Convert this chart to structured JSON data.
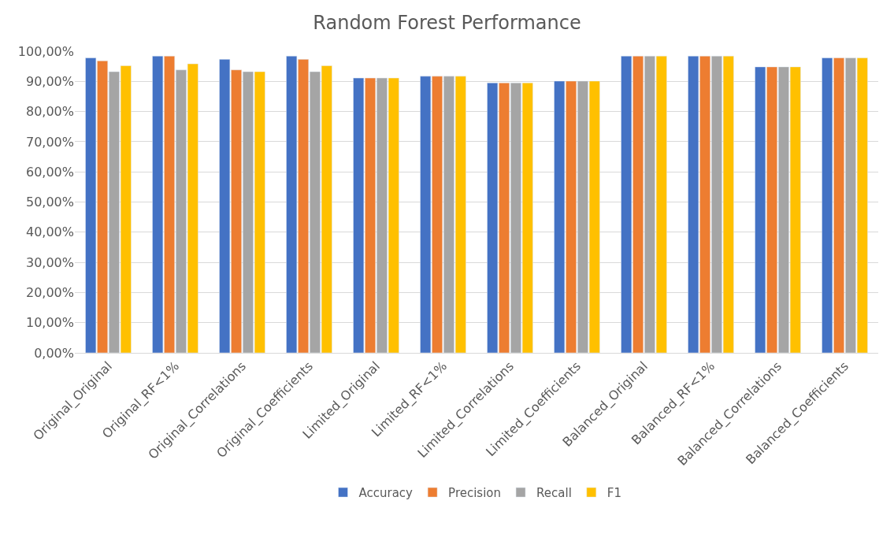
{
  "chart_data": {
    "type": "bar",
    "title": "Random Forest Performance",
    "categories": [
      "Original_Original",
      "Original_RF<1%",
      "Original_Correlations",
      "Original_Coefficients",
      "Limited_Original",
      "Limited_RF<1%",
      "Limited_Correlations",
      "Limited_Coefficients",
      "Balanced_Original",
      "Balanced_RF<1%",
      "Balanced_Correlations",
      "Balanced_Coefficients"
    ],
    "series": [
      {
        "name": "Accuracy",
        "color": "#4472c4",
        "values": [
          97.8,
          98.4,
          97.3,
          98.4,
          91.1,
          91.7,
          89.5,
          90.1,
          98.4,
          98.4,
          94.8,
          97.8
        ]
      },
      {
        "name": "Precision",
        "color": "#ed7d31",
        "values": [
          96.8,
          98.4,
          93.8,
          97.3,
          91.1,
          91.7,
          89.5,
          90.1,
          98.4,
          98.4,
          94.8,
          97.8
        ]
      },
      {
        "name": "Recall",
        "color": "#a5a5a5",
        "values": [
          93.2,
          93.8,
          93.2,
          93.2,
          91.1,
          91.7,
          89.5,
          90.1,
          98.4,
          98.4,
          94.8,
          97.8
        ]
      },
      {
        "name": "F1",
        "color": "#ffc000",
        "values": [
          95.2,
          95.8,
          93.2,
          95.2,
          91.1,
          91.7,
          89.5,
          90.1,
          98.4,
          98.4,
          94.8,
          97.8
        ]
      }
    ],
    "ylim": [
      0,
      100
    ],
    "yticks": [
      {
        "value": 0,
        "label": "0,00%"
      },
      {
        "value": 10,
        "label": "10,00%"
      },
      {
        "value": 20,
        "label": "20,00%"
      },
      {
        "value": 30,
        "label": "30,00%"
      },
      {
        "value": 40,
        "label": "40,00%"
      },
      {
        "value": 50,
        "label": "50,00%"
      },
      {
        "value": 60,
        "label": "60,00%"
      },
      {
        "value": 70,
        "label": "70,00%"
      },
      {
        "value": 80,
        "label": "80,00%"
      },
      {
        "value": 90,
        "label": "90,00%"
      },
      {
        "value": 100,
        "label": "100,00%"
      }
    ],
    "grid": "y",
    "legend": "bottom"
  }
}
